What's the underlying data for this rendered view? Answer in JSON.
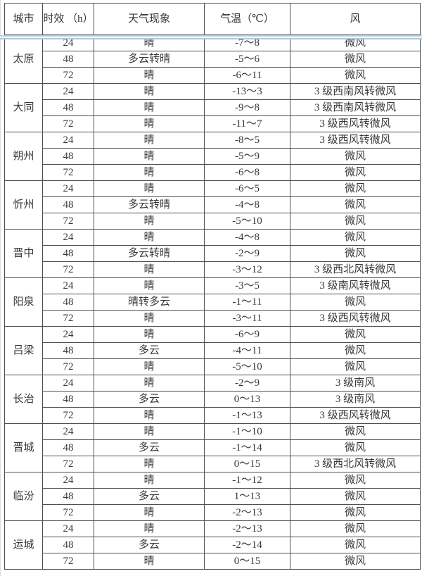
{
  "table": {
    "headers": {
      "city": "城市",
      "hours": "时效\n（h）",
      "weather": "天气现象",
      "temp": "气温（℃）",
      "wind": "风"
    }
  },
  "colors": {
    "border": "#4f4f4f",
    "text": "#383838",
    "separator_blue": "#aecde0",
    "background": "#ffffff"
  },
  "cities": [
    {
      "name": "太原",
      "rows": [
        {
          "hours": "24",
          "weather": "晴",
          "temp": "-7～8",
          "wind": "微风"
        },
        {
          "hours": "48",
          "weather": "多云转晴",
          "temp": "-5～6",
          "wind": "微风"
        },
        {
          "hours": "72",
          "weather": "晴",
          "temp": "-6～11",
          "wind": "微风"
        }
      ]
    },
    {
      "name": "大同",
      "rows": [
        {
          "hours": "24",
          "weather": "晴",
          "temp": "-13～3",
          "wind": "3 级西南风转微风"
        },
        {
          "hours": "48",
          "weather": "晴",
          "temp": "-9～8",
          "wind": "3 级西南风转微风"
        },
        {
          "hours": "72",
          "weather": "晴",
          "temp": "-11～7",
          "wind": "3 级西风转微风"
        }
      ]
    },
    {
      "name": "朔州",
      "rows": [
        {
          "hours": "24",
          "weather": "晴",
          "temp": "-8～5",
          "wind": "3 级西风转微风"
        },
        {
          "hours": "48",
          "weather": "晴",
          "temp": "-5～9",
          "wind": "微风"
        },
        {
          "hours": "72",
          "weather": "晴",
          "temp": "-6～8",
          "wind": "微风"
        }
      ]
    },
    {
      "name": "忻州",
      "rows": [
        {
          "hours": "24",
          "weather": "晴",
          "temp": "-6～5",
          "wind": "微风"
        },
        {
          "hours": "48",
          "weather": "多云转晴",
          "temp": "-4～8",
          "wind": "微风"
        },
        {
          "hours": "72",
          "weather": "晴",
          "temp": "-5～10",
          "wind": "微风"
        }
      ]
    },
    {
      "name": "晋中",
      "rows": [
        {
          "hours": "24",
          "weather": "晴",
          "temp": "-4～8",
          "wind": "微风"
        },
        {
          "hours": "48",
          "weather": "多云转晴",
          "temp": "-2～9",
          "wind": "微风"
        },
        {
          "hours": "72",
          "weather": "晴",
          "temp": "-3～12",
          "wind": "3 级西北风转微风"
        }
      ]
    },
    {
      "name": "阳泉",
      "rows": [
        {
          "hours": "24",
          "weather": "晴",
          "temp": "-3～5",
          "wind": "3 级南风转微风"
        },
        {
          "hours": "48",
          "weather": "晴转多云",
          "temp": "-1～11",
          "wind": "微风"
        },
        {
          "hours": "72",
          "weather": "晴",
          "temp": "-3～11",
          "wind": "3 级西风转微风"
        }
      ]
    },
    {
      "name": "吕梁",
      "rows": [
        {
          "hours": "24",
          "weather": "晴",
          "temp": "-6～9",
          "wind": "微风"
        },
        {
          "hours": "48",
          "weather": "多云",
          "temp": "-4～11",
          "wind": "微风"
        },
        {
          "hours": "72",
          "weather": "晴",
          "temp": "-5～10",
          "wind": "微风"
        }
      ]
    },
    {
      "name": "长治",
      "rows": [
        {
          "hours": "24",
          "weather": "晴",
          "temp": "-2～9",
          "wind": "3 级南风"
        },
        {
          "hours": "48",
          "weather": "多云",
          "temp": "0～13",
          "wind": "3 级南风"
        },
        {
          "hours": "72",
          "weather": "晴",
          "temp": "-1～13",
          "wind": "3 级西风转微风"
        }
      ]
    },
    {
      "name": "晋城",
      "rows": [
        {
          "hours": "24",
          "weather": "晴",
          "temp": "-1～10",
          "wind": "微风"
        },
        {
          "hours": "48",
          "weather": "多云",
          "temp": "-1～14",
          "wind": "微风"
        },
        {
          "hours": "72",
          "weather": "晴",
          "temp": "0～15",
          "wind": "3 级西北风转微风"
        }
      ]
    },
    {
      "name": "临汾",
      "rows": [
        {
          "hours": "24",
          "weather": "晴",
          "temp": "-1～12",
          "wind": "微风"
        },
        {
          "hours": "48",
          "weather": "多云",
          "temp": "1～13",
          "wind": "微风"
        },
        {
          "hours": "72",
          "weather": "晴",
          "temp": "-2～13",
          "wind": "微风"
        }
      ]
    },
    {
      "name": "运城",
      "rows": [
        {
          "hours": "24",
          "weather": "晴",
          "temp": "-2～13",
          "wind": "微风"
        },
        {
          "hours": "48",
          "weather": "多云",
          "temp": "-2～14",
          "wind": "微风"
        },
        {
          "hours": "72",
          "weather": "晴",
          "temp": "0～15",
          "wind": "微风"
        }
      ]
    }
  ]
}
